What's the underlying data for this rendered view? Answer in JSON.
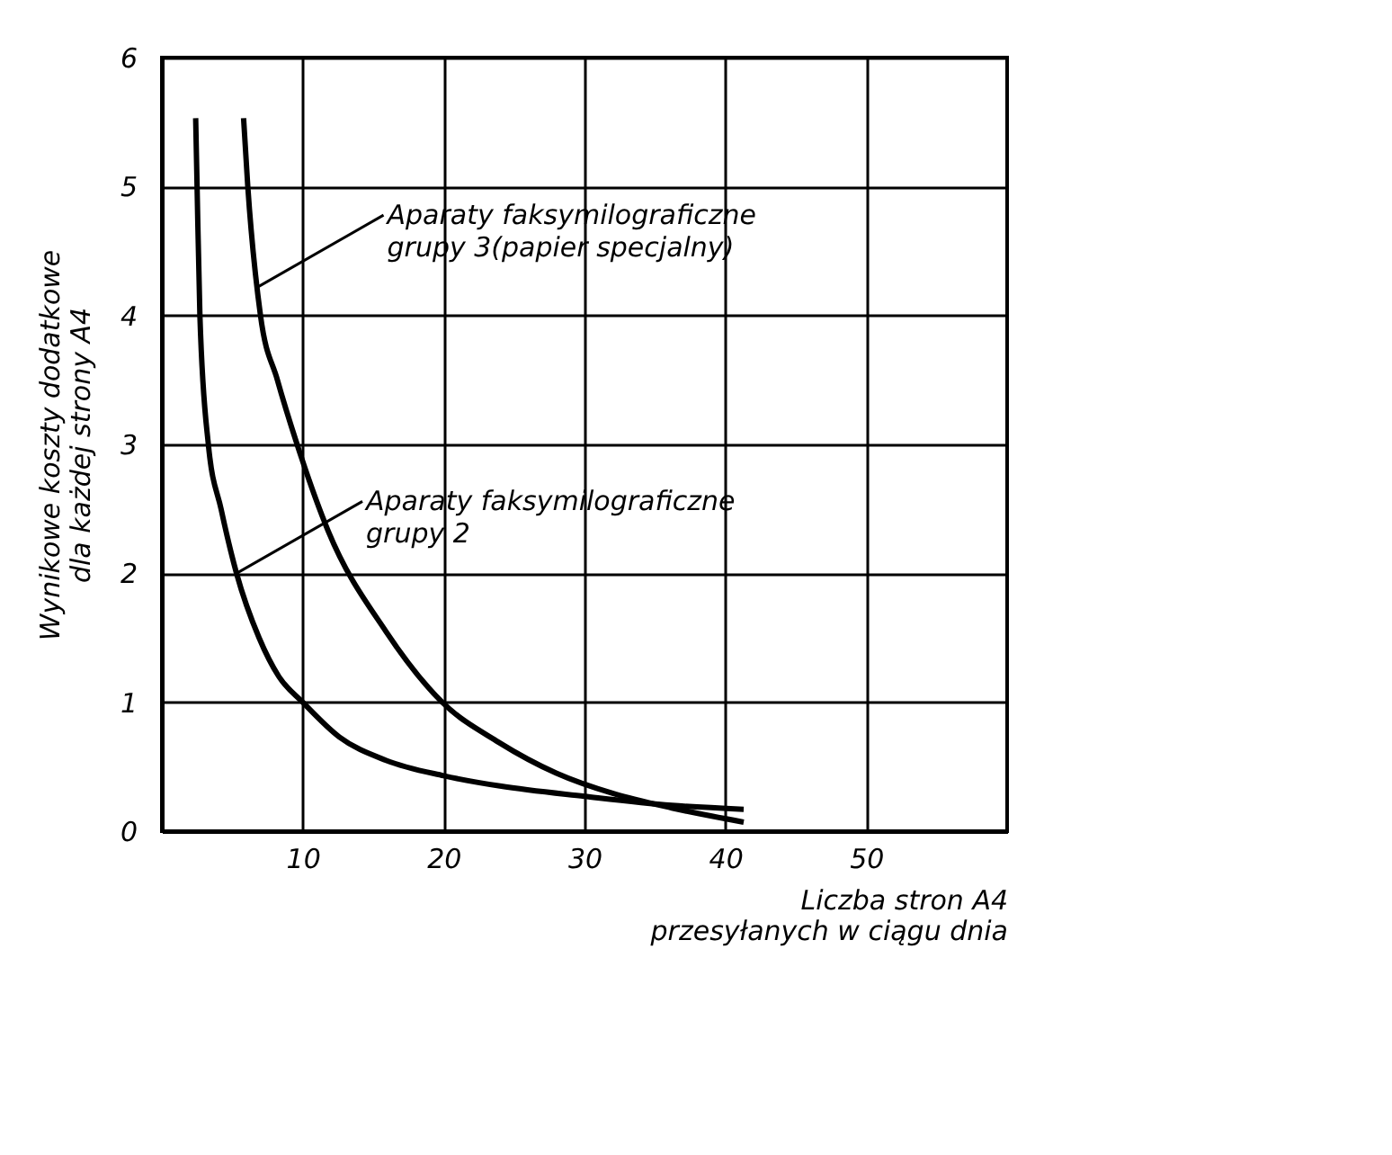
{
  "chart_data": {
    "type": "line",
    "xlabel": "Liczba stron A4\nprzesyłanych w ciągu dnia",
    "ylabel": "Wynikowe koszty dodatkowe\ndla każdej strony A4",
    "xlim": [
      0,
      60
    ],
    "xticks": [
      10,
      20,
      30,
      40,
      50
    ],
    "ylim": [
      0,
      6
    ],
    "yticks": [
      0,
      1,
      2,
      3,
      4,
      5,
      6
    ],
    "grid": true,
    "marker": "none",
    "line_style": "solid",
    "series": [
      {
        "color": "#000000",
        "x": [
          2.4,
          2.5,
          2.7,
          3.3,
          4.2,
          5.3,
          6.9,
          8.3,
          10.0,
          12.6,
          15.9,
          20,
          24,
          30,
          36.2,
          41.3
        ],
        "values": [
          5.53,
          5,
          4,
          3,
          2.5,
          2,
          1.5,
          1.2,
          1,
          0.73,
          0.55,
          0.43,
          0.35,
          0.27,
          0.2,
          0.17
        ]
      },
      {
        "color": "#000000",
        "x": [
          5.8,
          6.1,
          7.0,
          8.2,
          9.6,
          11.8,
          15.9,
          19.9,
          23.9,
          28,
          32.1,
          36.2,
          41.3
        ],
        "values": [
          5.53,
          5,
          4,
          3.5,
          3,
          2.33,
          1.55,
          1.0,
          0.69,
          0.45,
          0.29,
          0.18,
          0.07
        ]
      }
    ],
    "annotations": [
      {
        "text": "Aparaty faksymilograficzne\ngrupy 3(papier specjalny)",
        "x": 6.8,
        "y": 4.22
      },
      {
        "text": "Aparaty faksymilograficzne\ngrupy 2",
        "x": 5.3,
        "y": 2.0
      }
    ]
  }
}
